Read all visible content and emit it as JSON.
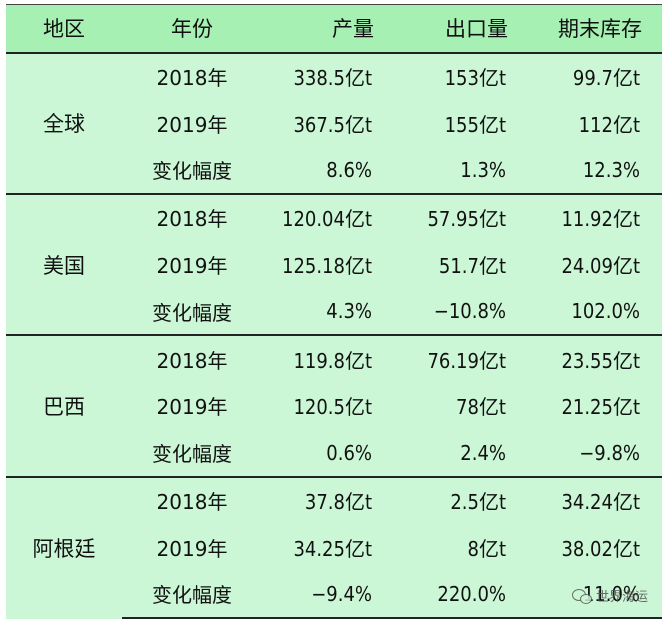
{
  "table": {
    "headers": [
      "地区",
      "年份",
      "产量",
      "出口量",
      "期末库存"
    ],
    "groups": [
      {
        "region": "全球",
        "rows": [
          [
            "2018年",
            "338.5亿t",
            "153亿t",
            "99.7亿t"
          ],
          [
            "2019年",
            "367.5亿t",
            "155亿t",
            "112亿t"
          ],
          [
            "变化幅度",
            "8.6%",
            "1.3%",
            "12.3%"
          ]
        ]
      },
      {
        "region": "美国",
        "rows": [
          [
            "2018年",
            "120.04亿t",
            "57.95亿t",
            "11.92亿t"
          ],
          [
            "2019年",
            "125.18亿t",
            "51.7亿t",
            "24.09亿t"
          ],
          [
            "变化幅度",
            "4.3%",
            "−10.8%",
            "102.0%"
          ]
        ]
      },
      {
        "region": "巴西",
        "rows": [
          [
            "2018年",
            "119.8亿t",
            "76.19亿t",
            "23.55亿t"
          ],
          [
            "2019年",
            "120.5亿t",
            "78亿t",
            "21.25亿t"
          ],
          [
            "变化幅度",
            "0.6%",
            "2.4%",
            "−9.8%"
          ]
        ]
      },
      {
        "region": "阿根廷",
        "rows": [
          [
            "2018年",
            "37.8亿t",
            "2.5亿t",
            "34.24亿t"
          ],
          [
            "2019年",
            "34.25亿t",
            "8亿t",
            "38.02亿t"
          ],
          [
            "变化幅度",
            "−9.4%",
            "220.0%",
            "11.0%"
          ]
        ]
      }
    ]
  },
  "watermark": {
    "text": "世界海运",
    "icon": "wechat-icon"
  }
}
